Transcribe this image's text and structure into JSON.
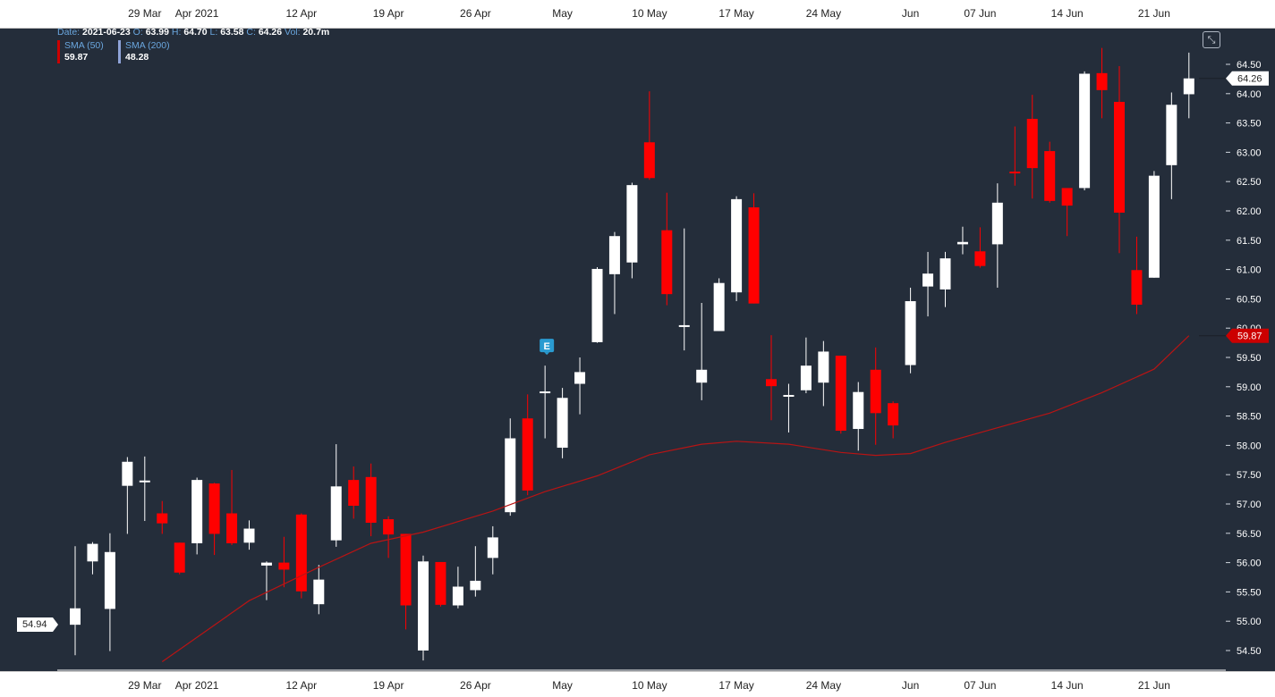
{
  "header": {
    "date_label": "Date:",
    "date": "2021-06-23",
    "open_label": "O:",
    "open": "63.99",
    "high_label": "H:",
    "high": "64.70",
    "low_label": "L:",
    "low": "63.58",
    "close_label": "C:",
    "close": "64.26",
    "vol_label": "Vol:",
    "vol": "20.7m"
  },
  "legend": {
    "sma50_name": "SMA (50)",
    "sma50_value": "59.87",
    "sma200_name": "SMA (200)",
    "sma200_value": "48.28"
  },
  "price_tags": {
    "last": "64.26",
    "sma": "59.87",
    "left": "54.94"
  },
  "colors": {
    "background": "#242d3a",
    "up": "#ffffff",
    "down": "#ff0000",
    "sma50": "#b81414",
    "sma200": "#8fa3d8",
    "earnings": "#2a9bd1"
  },
  "icons": {
    "earnings_marker": "E",
    "expand": "collapse-arrows-icon"
  },
  "chart_data": {
    "type": "candlestick",
    "y_ticks": [
      "54.50",
      "55.00",
      "55.50",
      "56.00",
      "56.50",
      "57.00",
      "57.50",
      "58.00",
      "58.50",
      "59.00",
      "59.50",
      "60.00",
      "60.50",
      "61.00",
      "61.50",
      "62.00",
      "62.50",
      "63.00",
      "63.50",
      "64.00",
      "64.50"
    ],
    "ylim": [
      54.3,
      64.85
    ],
    "x_ticks": [
      "29 Mar",
      "Apr 2021",
      "12 Apr",
      "19 Apr",
      "26 Apr",
      "May",
      "10 May",
      "17 May",
      "24 May",
      "Jun",
      "07 Jun",
      "14 Jun",
      "21 Jun"
    ],
    "x_tick_dates": [
      "2021-03-29",
      "2021-04-01",
      "2021-04-12",
      "2021-04-19",
      "2021-04-26",
      "2021-05-03",
      "2021-05-10",
      "2021-05-17",
      "2021-05-24",
      "2021-06-01",
      "2021-06-07",
      "2021-06-14",
      "2021-06-21"
    ],
    "dates": [
      "2021-03-23",
      "2021-03-24",
      "2021-03-25",
      "2021-03-26",
      "2021-03-29",
      "2021-03-30",
      "2021-03-31",
      "2021-04-01",
      "2021-04-05",
      "2021-04-06",
      "2021-04-07",
      "2021-04-08",
      "2021-04-09",
      "2021-04-12",
      "2021-04-13",
      "2021-04-14",
      "2021-04-15",
      "2021-04-16",
      "2021-04-19",
      "2021-04-20",
      "2021-04-21",
      "2021-04-22",
      "2021-04-23",
      "2021-04-26",
      "2021-04-27",
      "2021-04-28",
      "2021-04-29",
      "2021-04-30",
      "2021-05-03",
      "2021-05-04",
      "2021-05-05",
      "2021-05-06",
      "2021-05-07",
      "2021-05-10",
      "2021-05-11",
      "2021-05-12",
      "2021-05-13",
      "2021-05-14",
      "2021-05-17",
      "2021-05-18",
      "2021-05-19",
      "2021-05-20",
      "2021-05-21",
      "2021-05-24",
      "2021-05-25",
      "2021-05-26",
      "2021-05-27",
      "2021-05-28",
      "2021-06-01",
      "2021-06-02",
      "2021-06-03",
      "2021-06-04",
      "2021-06-07",
      "2021-06-08",
      "2021-06-09",
      "2021-06-10",
      "2021-06-11",
      "2021-06-14",
      "2021-06-15",
      "2021-06-16",
      "2021-06-17",
      "2021-06-18",
      "2021-06-21",
      "2021-06-22",
      "2021-06-23"
    ],
    "candles": [
      [
        54.94,
        55.22,
        54.42,
        56.28
      ],
      [
        56.02,
        56.32,
        55.8,
        56.35
      ],
      [
        55.21,
        56.18,
        54.49,
        56.5
      ],
      [
        57.31,
        57.72,
        56.49,
        57.8
      ],
      [
        57.37,
        57.4,
        56.71,
        57.81
      ],
      [
        56.84,
        56.67,
        56.49,
        57.05
      ],
      [
        56.34,
        55.83,
        55.8,
        56.34
      ],
      [
        56.33,
        57.41,
        56.14,
        57.45
      ],
      [
        57.35,
        56.49,
        56.13,
        57.36
      ],
      [
        56.84,
        56.33,
        56.3,
        57.58
      ],
      [
        56.34,
        56.58,
        56.22,
        56.72
      ],
      [
        55.95,
        56.0,
        55.36,
        56.02
      ],
      [
        56.0,
        55.88,
        55.58,
        56.44
      ],
      [
        56.82,
        55.51,
        55.39,
        56.84
      ],
      [
        55.29,
        55.71,
        55.12,
        55.96
      ],
      [
        56.38,
        57.3,
        56.27,
        58.02
      ],
      [
        57.41,
        56.97,
        56.75,
        57.64
      ],
      [
        57.46,
        56.68,
        56.45,
        57.69
      ],
      [
        56.74,
        56.48,
        56.08,
        56.79
      ],
      [
        56.49,
        55.27,
        54.86,
        56.49
      ],
      [
        54.5,
        56.02,
        54.33,
        56.12
      ],
      [
        56.01,
        55.28,
        55.25,
        56.0
      ],
      [
        55.27,
        55.59,
        55.22,
        55.93
      ],
      [
        55.53,
        55.69,
        55.42,
        56.28
      ],
      [
        56.08,
        56.43,
        55.8,
        56.62
      ],
      [
        56.86,
        58.12,
        56.8,
        58.46
      ],
      [
        58.46,
        57.23,
        57.15,
        58.87
      ],
      [
        58.91,
        58.92,
        58.12,
        59.36
      ],
      [
        57.96,
        58.81,
        57.78,
        58.98
      ],
      [
        59.05,
        59.25,
        58.53,
        59.5
      ],
      [
        59.76,
        61.01,
        59.75,
        61.04
      ],
      [
        60.92,
        61.57,
        60.24,
        61.64
      ],
      [
        61.12,
        62.44,
        60.85,
        62.48
      ],
      [
        63.17,
        62.56,
        62.53,
        64.04
      ],
      [
        61.67,
        60.58,
        60.39,
        62.31
      ],
      [
        60.02,
        60.05,
        59.62,
        61.7
      ],
      [
        59.07,
        59.29,
        58.77,
        60.43
      ],
      [
        59.95,
        60.77,
        59.95,
        60.85
      ],
      [
        60.61,
        62.2,
        60.46,
        62.25
      ],
      [
        62.06,
        60.42,
        60.42,
        62.3
      ],
      [
        59.13,
        59.01,
        58.43,
        59.88
      ],
      [
        58.84,
        58.86,
        58.22,
        59.05
      ],
      [
        58.94,
        59.36,
        58.89,
        59.84
      ],
      [
        59.07,
        59.6,
        58.67,
        59.78
      ],
      [
        59.53,
        58.25,
        58.2,
        59.53
      ],
      [
        58.28,
        58.91,
        57.91,
        59.08
      ],
      [
        59.29,
        58.55,
        58.01,
        59.67
      ],
      [
        58.72,
        58.34,
        58.12,
        58.75
      ],
      [
        59.37,
        60.46,
        59.23,
        60.69
      ],
      [
        60.71,
        60.93,
        60.2,
        61.3
      ],
      [
        60.66,
        61.19,
        60.36,
        61.3
      ],
      [
        61.43,
        61.47,
        61.26,
        61.73
      ],
      [
        61.31,
        61.06,
        61.03,
        61.72
      ],
      [
        61.43,
        62.14,
        60.69,
        62.47
      ],
      [
        62.67,
        62.65,
        62.43,
        63.44
      ],
      [
        63.57,
        62.73,
        62.21,
        63.98
      ],
      [
        63.02,
        62.17,
        62.14,
        63.18
      ],
      [
        62.39,
        62.09,
        61.57,
        62.37
      ],
      [
        62.39,
        64.34,
        62.35,
        64.38
      ],
      [
        64.35,
        64.06,
        63.58,
        64.78
      ],
      [
        63.86,
        61.97,
        61.28,
        64.47
      ],
      [
        60.99,
        60.4,
        60.24,
        61.56
      ],
      [
        60.86,
        62.6,
        60.86,
        62.68
      ],
      [
        62.78,
        63.81,
        62.2,
        64.02
      ],
      [
        63.99,
        64.26,
        63.58,
        64.7
      ]
    ],
    "sma50": [
      [
        5,
        54.31
      ],
      [
        10,
        55.35
      ],
      [
        14,
        55.92
      ],
      [
        17,
        56.33
      ],
      [
        20,
        56.52
      ],
      [
        24,
        56.88
      ],
      [
        27,
        57.21
      ],
      [
        30,
        57.48
      ],
      [
        33,
        57.84
      ],
      [
        36,
        58.02
      ],
      [
        38,
        58.07
      ],
      [
        41,
        58.02
      ],
      [
        44,
        57.88
      ],
      [
        46,
        57.83
      ],
      [
        48,
        57.86
      ],
      [
        50,
        58.05
      ],
      [
        53,
        58.3
      ],
      [
        56,
        58.55
      ],
      [
        59,
        58.9
      ],
      [
        62,
        59.3
      ],
      [
        64,
        59.87
      ]
    ],
    "sma200": [],
    "earnings_marker_index": 27
  }
}
